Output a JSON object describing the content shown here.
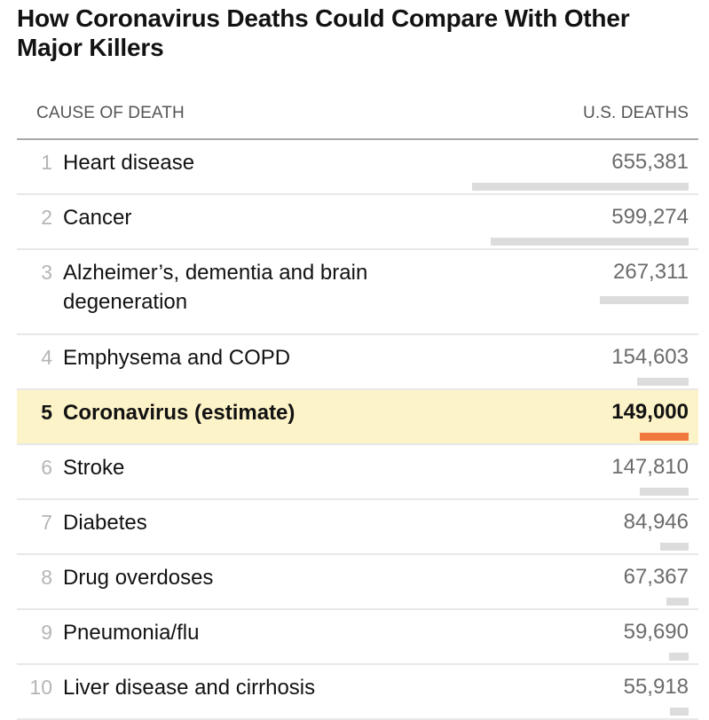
{
  "title": "How Coronavirus Deaths Could Compare With Other Major Killers",
  "header": {
    "cause_label": "CAUSE OF DEATH",
    "deaths_label": "U.S. DEATHS"
  },
  "colors": {
    "bar": "#dcdcdc",
    "highlight_bar": "#f07a3e",
    "highlight_bg": "#fdf3c8"
  },
  "chart_data": {
    "type": "table",
    "title": "How Coronavirus Deaths Could Compare With Other Major Killers",
    "columns": [
      "CAUSE OF DEATH",
      "U.S. DEATHS"
    ],
    "highlight_rank": 5,
    "rows": [
      {
        "rank": "1",
        "cause": "Heart disease",
        "deaths": 655381,
        "deaths_label": "655,381"
      },
      {
        "rank": "2",
        "cause": "Cancer",
        "deaths": 599274,
        "deaths_label": "599,274"
      },
      {
        "rank": "3",
        "cause": "Alzheimer’s, dementia and brain degeneration",
        "deaths": 267311,
        "deaths_label": "267,311"
      },
      {
        "rank": "4",
        "cause": "Emphysema and COPD",
        "deaths": 154603,
        "deaths_label": "154,603"
      },
      {
        "rank": "5",
        "cause": "Coronavirus (estimate)",
        "deaths": 149000,
        "deaths_label": "149,000"
      },
      {
        "rank": "6",
        "cause": "Stroke",
        "deaths": 147810,
        "deaths_label": "147,810"
      },
      {
        "rank": "7",
        "cause": "Diabetes",
        "deaths": 84946,
        "deaths_label": "84,946"
      },
      {
        "rank": "8",
        "cause": "Drug overdoses",
        "deaths": 67367,
        "deaths_label": "67,367"
      },
      {
        "rank": "9",
        "cause": "Pneumonia/flu",
        "deaths": 59690,
        "deaths_label": "59,690"
      },
      {
        "rank": "10",
        "cause": "Liver disease and cirrhosis",
        "deaths": 55918,
        "deaths_label": "55,918"
      }
    ]
  }
}
